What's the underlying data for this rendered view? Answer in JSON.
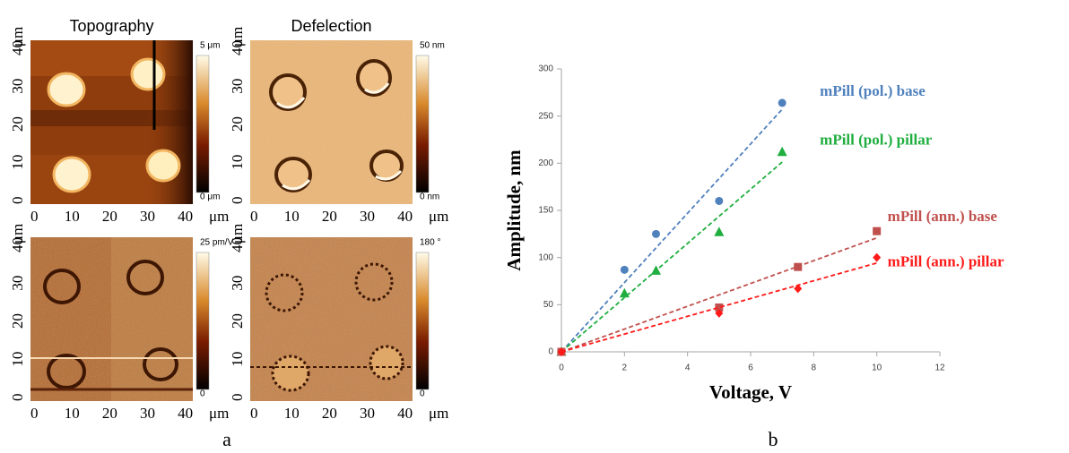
{
  "panel_a": {
    "label": "a",
    "unit": "μm",
    "ticks": [
      0,
      10,
      20,
      30,
      40
    ],
    "lim": [
      -1,
      42
    ],
    "images": [
      {
        "title": "Topography",
        "scale_max": "5 μm",
        "scale_min": "0 μm"
      },
      {
        "title": "Defelection",
        "scale_max": "50 nm",
        "scale_min": "0 nm"
      },
      {
        "scale_max": "25 pm/V",
        "scale_min": "0"
      },
      {
        "scale_max": "180 °",
        "scale_min": "0"
      }
    ]
  },
  "chart_data": {
    "type": "scatter",
    "label": "b",
    "x_label": "Voltage, V",
    "y_label": "Amplitude, nm",
    "xlim": [
      0,
      12
    ],
    "xticks": [
      0,
      2,
      4,
      6,
      8,
      10,
      12
    ],
    "ylim": [
      0,
      300
    ],
    "yticks": [
      0,
      50,
      100,
      150,
      200,
      250,
      300
    ],
    "trendline": "linear",
    "series": [
      {
        "name": "mPill (pol.) base",
        "color": "#4f81bd",
        "marker": "circle",
        "x": [
          0,
          2,
          3,
          5,
          7
        ],
        "values": [
          0,
          87,
          125,
          160,
          264
        ]
      },
      {
        "name": "mPill (pol.) pillar",
        "color": "#1fae3f",
        "marker": "triangle",
        "x": [
          0,
          2,
          3,
          5,
          7
        ],
        "values": [
          0,
          62,
          86,
          127,
          212
        ]
      },
      {
        "name": "mPill (ann.) base",
        "color": "#c0504d",
        "marker": "square",
        "x": [
          0,
          5,
          7.5,
          10
        ],
        "values": [
          0,
          47,
          90,
          128
        ]
      },
      {
        "name": "mPill (ann.) pillar",
        "color": "#ff1a1a",
        "marker": "diamond",
        "x": [
          0,
          5,
          7.5,
          10
        ],
        "values": [
          0,
          41,
          67,
          100
        ]
      }
    ]
  }
}
